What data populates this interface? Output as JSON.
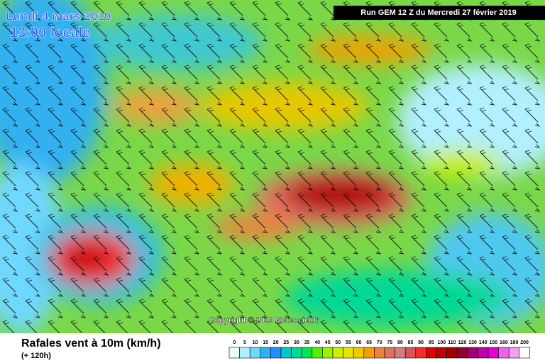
{
  "header": {
    "date": "Lundi 4 mars 2019",
    "time": "13:00 locale",
    "run": "Run GEM 12 Z du Mercredi 27 février 2019"
  },
  "copyright": "Copyright © 2019 Meteociel.fr",
  "footer": {
    "title": "Rafales vent à 10m (km/h)",
    "subtitle": "(+ 120h)"
  },
  "legend": {
    "labels": [
      0,
      5,
      10,
      15,
      20,
      25,
      30,
      35,
      40,
      45,
      50,
      55,
      60,
      65,
      70,
      75,
      80,
      85,
      90,
      95,
      100,
      110,
      120,
      130,
      140,
      150,
      160,
      180,
      200
    ],
    "colors": [
      "#e8ffff",
      "#b0f0ff",
      "#70d8ff",
      "#30b0f0",
      "#1e90ff",
      "#00c8c8",
      "#00d896",
      "#00e650",
      "#50f000",
      "#a0f000",
      "#c8f000",
      "#e6e600",
      "#f0c800",
      "#f0a000",
      "#f08040",
      "#e07060",
      "#d08080",
      "#e05050",
      "#f03030",
      "#e00000",
      "#c00000",
      "#a00000",
      "#900030",
      "#a00070",
      "#c000a0",
      "#e000d0",
      "#f060f0",
      "#f0a0f0",
      "#ffffff"
    ]
  }
}
